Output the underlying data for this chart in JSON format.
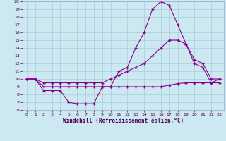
{
  "xlabel": "Windchill (Refroidissement éolien,°C)",
  "background_color": "#cce8f0",
  "grid_color": "#aaccdd",
  "line_color": "#880088",
  "xlim": [
    -0.5,
    23.5
  ],
  "ylim": [
    6,
    20
  ],
  "yticks": [
    6,
    7,
    8,
    9,
    10,
    11,
    12,
    13,
    14,
    15,
    16,
    17,
    18,
    19,
    20
  ],
  "xticks": [
    0,
    1,
    2,
    3,
    4,
    5,
    6,
    7,
    8,
    9,
    10,
    11,
    12,
    13,
    14,
    15,
    16,
    17,
    18,
    19,
    20,
    21,
    22,
    23
  ],
  "line1_x": [
    0,
    1,
    2,
    3,
    4,
    5,
    6,
    7,
    8,
    9,
    10,
    11,
    12,
    13,
    14,
    15,
    16,
    17,
    18,
    19,
    20,
    21,
    22,
    23
  ],
  "line1_y": [
    10,
    10,
    8.5,
    8.5,
    8.5,
    7.0,
    6.8,
    6.8,
    6.8,
    9.0,
    9.0,
    11.0,
    11.5,
    14.0,
    16.0,
    19.0,
    20.0,
    19.5,
    17.0,
    14.5,
    12.0,
    11.5,
    9.5,
    10.0
  ],
  "line2_x": [
    0,
    1,
    2,
    3,
    4,
    5,
    6,
    7,
    8,
    9,
    10,
    11,
    12,
    13,
    14,
    15,
    16,
    17,
    18,
    19,
    20,
    21,
    22,
    23
  ],
  "line2_y": [
    10,
    10,
    9.5,
    9.5,
    9.5,
    9.5,
    9.5,
    9.5,
    9.5,
    9.5,
    10.0,
    10.5,
    11.0,
    11.5,
    12.0,
    13.0,
    14.0,
    15.0,
    15.0,
    14.5,
    12.5,
    12.0,
    10.0,
    10.0
  ],
  "line3_x": [
    0,
    1,
    2,
    3,
    4,
    5,
    6,
    7,
    8,
    9,
    10,
    11,
    12,
    13,
    14,
    15,
    16,
    17,
    18,
    19,
    20,
    21,
    22,
    23
  ],
  "line3_y": [
    10,
    10,
    9.0,
    9.0,
    9.0,
    9.0,
    9.0,
    9.0,
    9.0,
    9.0,
    9.0,
    9.0,
    9.0,
    9.0,
    9.0,
    9.0,
    9.0,
    9.2,
    9.4,
    9.5,
    9.5,
    9.5,
    9.5,
    9.5
  ]
}
